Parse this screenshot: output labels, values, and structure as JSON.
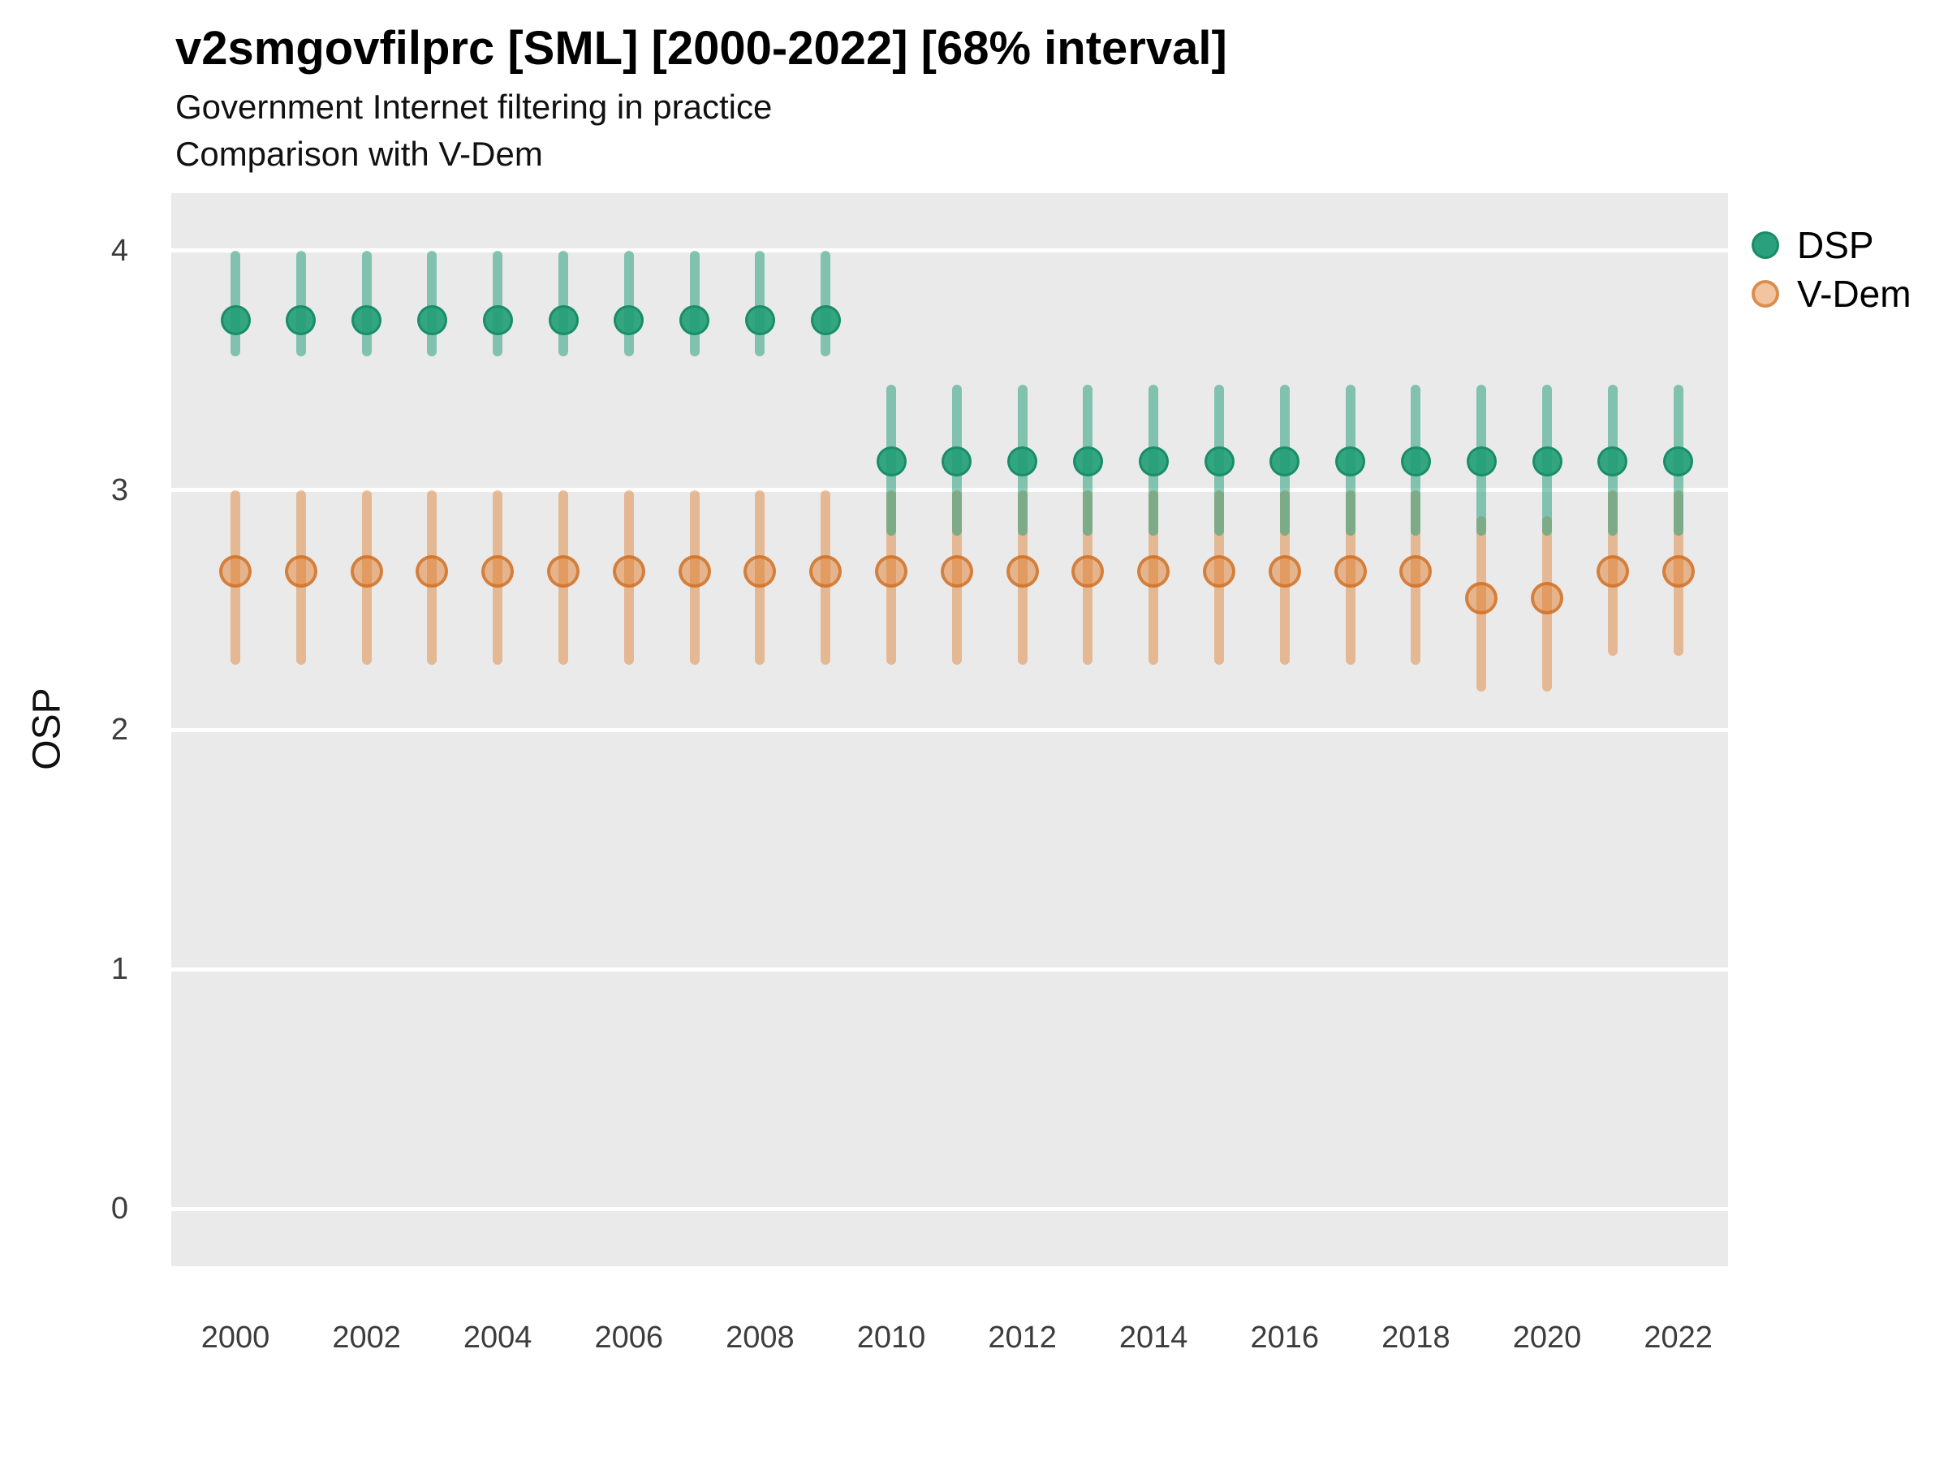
{
  "chart_data": {
    "type": "pointrange",
    "title": "v2smgovfilprc [SML] [2000-2022] [68% interval]",
    "subtitle1": "Government Internet filtering in practice",
    "subtitle2": "Comparison with V-Dem",
    "ylabel": "OSP",
    "xlabel": "",
    "interval_level": "68%",
    "grid": "major horizontal white lines on grey panel",
    "legend_position": "right-top",
    "ylim": [
      -0.24,
      4.24
    ],
    "y_ticks": [
      0,
      1,
      2,
      3,
      4
    ],
    "x_ticks": [
      2000,
      2002,
      2004,
      2006,
      2008,
      2010,
      2012,
      2014,
      2016,
      2018,
      2020,
      2022
    ],
    "years": [
      2000,
      2001,
      2002,
      2003,
      2004,
      2005,
      2006,
      2007,
      2008,
      2009,
      2010,
      2011,
      2012,
      2013,
      2014,
      2015,
      2016,
      2017,
      2018,
      2019,
      2020,
      2021,
      2022
    ],
    "series": [
      {
        "name": "DSP",
        "color": "#2aa17c",
        "est": [
          3.71,
          3.71,
          3.71,
          3.71,
          3.71,
          3.71,
          3.71,
          3.71,
          3.71,
          3.71,
          3.12,
          3.12,
          3.12,
          3.12,
          3.12,
          3.12,
          3.12,
          3.12,
          3.12,
          3.12,
          3.12,
          3.12,
          3.12
        ],
        "lo": [
          3.56,
          3.56,
          3.56,
          3.56,
          3.56,
          3.56,
          3.56,
          3.56,
          3.56,
          3.56,
          2.81,
          2.81,
          2.81,
          2.81,
          2.81,
          2.81,
          2.81,
          2.81,
          2.81,
          2.81,
          2.81,
          2.81,
          2.81
        ],
        "hi": [
          4.0,
          4.0,
          4.0,
          4.0,
          4.0,
          4.0,
          4.0,
          4.0,
          4.0,
          4.0,
          3.44,
          3.44,
          3.44,
          3.44,
          3.44,
          3.44,
          3.44,
          3.44,
          3.44,
          3.44,
          3.44,
          3.44,
          3.44
        ]
      },
      {
        "name": "V-Dem",
        "color": "#e08437",
        "est": [
          2.66,
          2.66,
          2.66,
          2.66,
          2.66,
          2.66,
          2.66,
          2.66,
          2.66,
          2.66,
          2.66,
          2.66,
          2.66,
          2.66,
          2.66,
          2.66,
          2.66,
          2.66,
          2.66,
          2.55,
          2.55,
          2.66,
          2.66
        ],
        "lo": [
          2.27,
          2.27,
          2.27,
          2.27,
          2.27,
          2.27,
          2.27,
          2.27,
          2.27,
          2.27,
          2.27,
          2.27,
          2.27,
          2.27,
          2.27,
          2.27,
          2.27,
          2.27,
          2.27,
          2.16,
          2.16,
          2.31,
          2.31
        ],
        "hi": [
          3.0,
          3.0,
          3.0,
          3.0,
          3.0,
          3.0,
          3.0,
          3.0,
          3.0,
          3.0,
          3.0,
          3.0,
          3.0,
          3.0,
          3.0,
          3.0,
          3.0,
          3.0,
          3.0,
          2.89,
          2.89,
          3.0,
          3.0
        ]
      }
    ],
    "legend": [
      {
        "label": "DSP",
        "color": "#2aa17c"
      },
      {
        "label": "V-Dem",
        "color": "#e08437"
      }
    ],
    "colors": {
      "panel_background": "#eaeaea",
      "gridline": "#ffffff",
      "dsp_point": "#2aa17c",
      "dsp_bar": "rgba(42,161,124,0.55)",
      "vdem_point_fill": "rgba(223,126,45,0.50)",
      "vdem_point_stroke": "rgba(206,110,32,0.75)",
      "vdem_bar": "rgba(224,130,55,0.48)",
      "tick_text": "#3c3c3c"
    }
  }
}
